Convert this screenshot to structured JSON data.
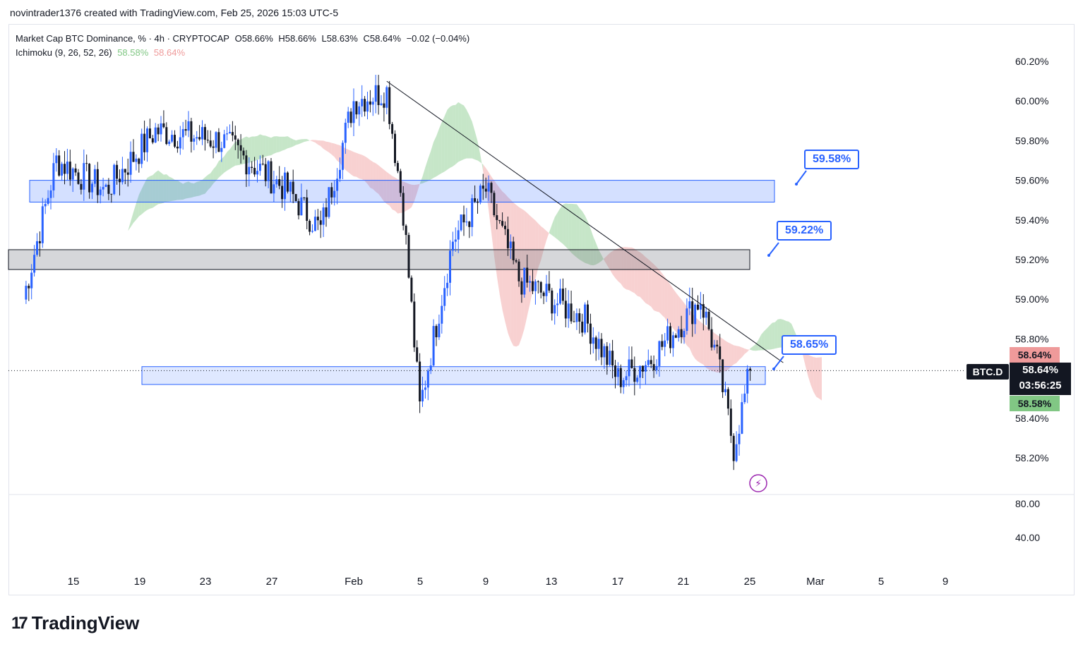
{
  "header": {
    "attribution": "novintrader1376 created with TradingView.com, Feb 25, 2026 15:03 UTC-5"
  },
  "legend": {
    "symbol_line": "Market Cap BTC Dominance, % · 4h · CRYPTOCAP",
    "open": "O58.66%",
    "high": "H58.66%",
    "low": "L58.63%",
    "close": "C58.64%",
    "change": "−0.02 (−0.04%)",
    "indicator": "Ichimoku (9, 26, 52, 26)",
    "ind_val1": "58.58%",
    "ind_val2": "58.64%"
  },
  "price_tags": {
    "cloud_top": "58.64%",
    "symbol": "BTC.D",
    "last_price": "58.64%",
    "countdown": "03:56:25",
    "cloud_bottom": "58.58%"
  },
  "callouts": {
    "upper": "59.58%",
    "middle": "59.22%",
    "lower": "58.65%"
  },
  "lower_pane_labels": [
    "80.00",
    "40.00"
  ],
  "brand": {
    "name": "TradingView"
  },
  "colors": {
    "bull": "#2962ff",
    "bear": "#131722",
    "zone_blue": "#2962ff",
    "zone_gray": "#787b86",
    "cloud_green": "#81c784",
    "cloud_red": "#ef9a9a"
  },
  "chart_data": {
    "type": "candlestick",
    "title": "Market Cap BTC Dominance, %",
    "timeframe": "4h",
    "exchange": "CRYPTOCAP",
    "y_axis": {
      "unit": "%",
      "ticks": [
        60.2,
        60.0,
        59.8,
        59.6,
        59.4,
        59.2,
        59.0,
        58.8,
        58.4,
        58.2
      ],
      "range": [
        58.1,
        60.35
      ]
    },
    "x_axis": {
      "ticks": [
        "15",
        "19",
        "23",
        "27",
        "Feb",
        "5",
        "9",
        "13",
        "17",
        "21",
        "25",
        "Mar",
        "5",
        "9"
      ]
    },
    "price_path": [
      {
        "date": "Jan 12",
        "value": 59.0
      },
      {
        "date": "Jan 14",
        "value": 59.7
      },
      {
        "date": "Jan 17",
        "value": 59.55
      },
      {
        "date": "Jan 20",
        "value": 59.85
      },
      {
        "date": "Jan 24",
        "value": 59.8
      },
      {
        "date": "Jan 28",
        "value": 59.55
      },
      {
        "date": "Jan 30",
        "value": 59.35
      },
      {
        "date": "Feb 1",
        "value": 60.0
      },
      {
        "date": "Feb 3",
        "value": 60.05
      },
      {
        "date": "Feb 4",
        "value": 59.45
      },
      {
        "date": "Feb 5",
        "value": 58.45
      },
      {
        "date": "Feb 7",
        "value": 59.3
      },
      {
        "date": "Feb 9",
        "value": 59.55
      },
      {
        "date": "Feb 11",
        "value": 59.1
      },
      {
        "date": "Feb 13",
        "value": 59.0
      },
      {
        "date": "Feb 15",
        "value": 58.9
      },
      {
        "date": "Feb 17",
        "value": 58.6
      },
      {
        "date": "Feb 19",
        "value": 58.7
      },
      {
        "date": "Feb 21",
        "value": 58.9
      },
      {
        "date": "Feb 22",
        "value": 59.0
      },
      {
        "date": "Feb 23",
        "value": 58.7
      },
      {
        "date": "Feb 24",
        "value": 58.25
      },
      {
        "date": "Feb 25",
        "value": 58.64
      }
    ],
    "horizontal_zones": [
      {
        "name": "upper resistance",
        "from": 59.49,
        "to": 59.6
      },
      {
        "name": "mid zone",
        "from": 59.15,
        "to": 59.25
      },
      {
        "name": "support",
        "from": 58.57,
        "to": 58.66
      }
    ],
    "trendline": {
      "from": {
        "date": "Feb 3",
        "value": 60.1
      },
      "to": {
        "date": "Feb 27",
        "value": 58.68
      }
    },
    "annotations": [
      "59.58%",
      "59.22%",
      "58.65%"
    ],
    "last_price": 58.64
  }
}
